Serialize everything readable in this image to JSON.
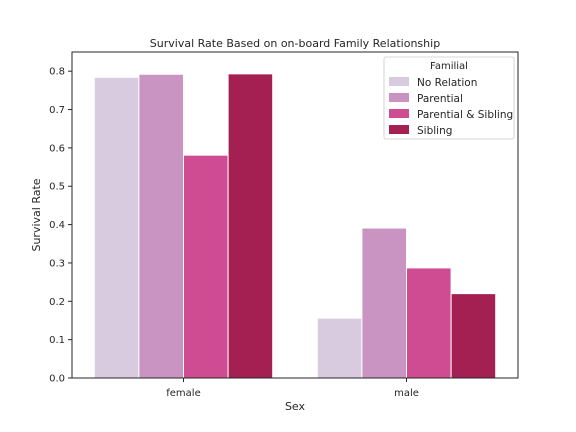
{
  "chart_data": {
    "type": "bar",
    "title": "Survival Rate Based on on-board Family Relationship",
    "xlabel": "Sex",
    "ylabel": "Survival Rate",
    "categories": [
      "female",
      "male"
    ],
    "ylim": [
      0,
      0.85
    ],
    "yticks": [
      "0.0",
      "0.1",
      "0.2",
      "0.3",
      "0.4",
      "0.5",
      "0.6",
      "0.7",
      "0.8"
    ],
    "grid": false,
    "legend": {
      "title": "Familial",
      "placement": "top-right"
    },
    "series": [
      {
        "name": "No Relation",
        "color": "#d8cbe0",
        "values": [
          0.784,
          0.156
        ]
      },
      {
        "name": "Parential",
        "color": "#c993c2",
        "values": [
          0.792,
          0.391
        ]
      },
      {
        "name": "Parential & Sibling",
        "color": "#cf4b92",
        "values": [
          0.581,
          0.287
        ]
      },
      {
        "name": "Sibling",
        "color": "#a42052",
        "values": [
          0.793,
          0.22
        ]
      }
    ]
  }
}
